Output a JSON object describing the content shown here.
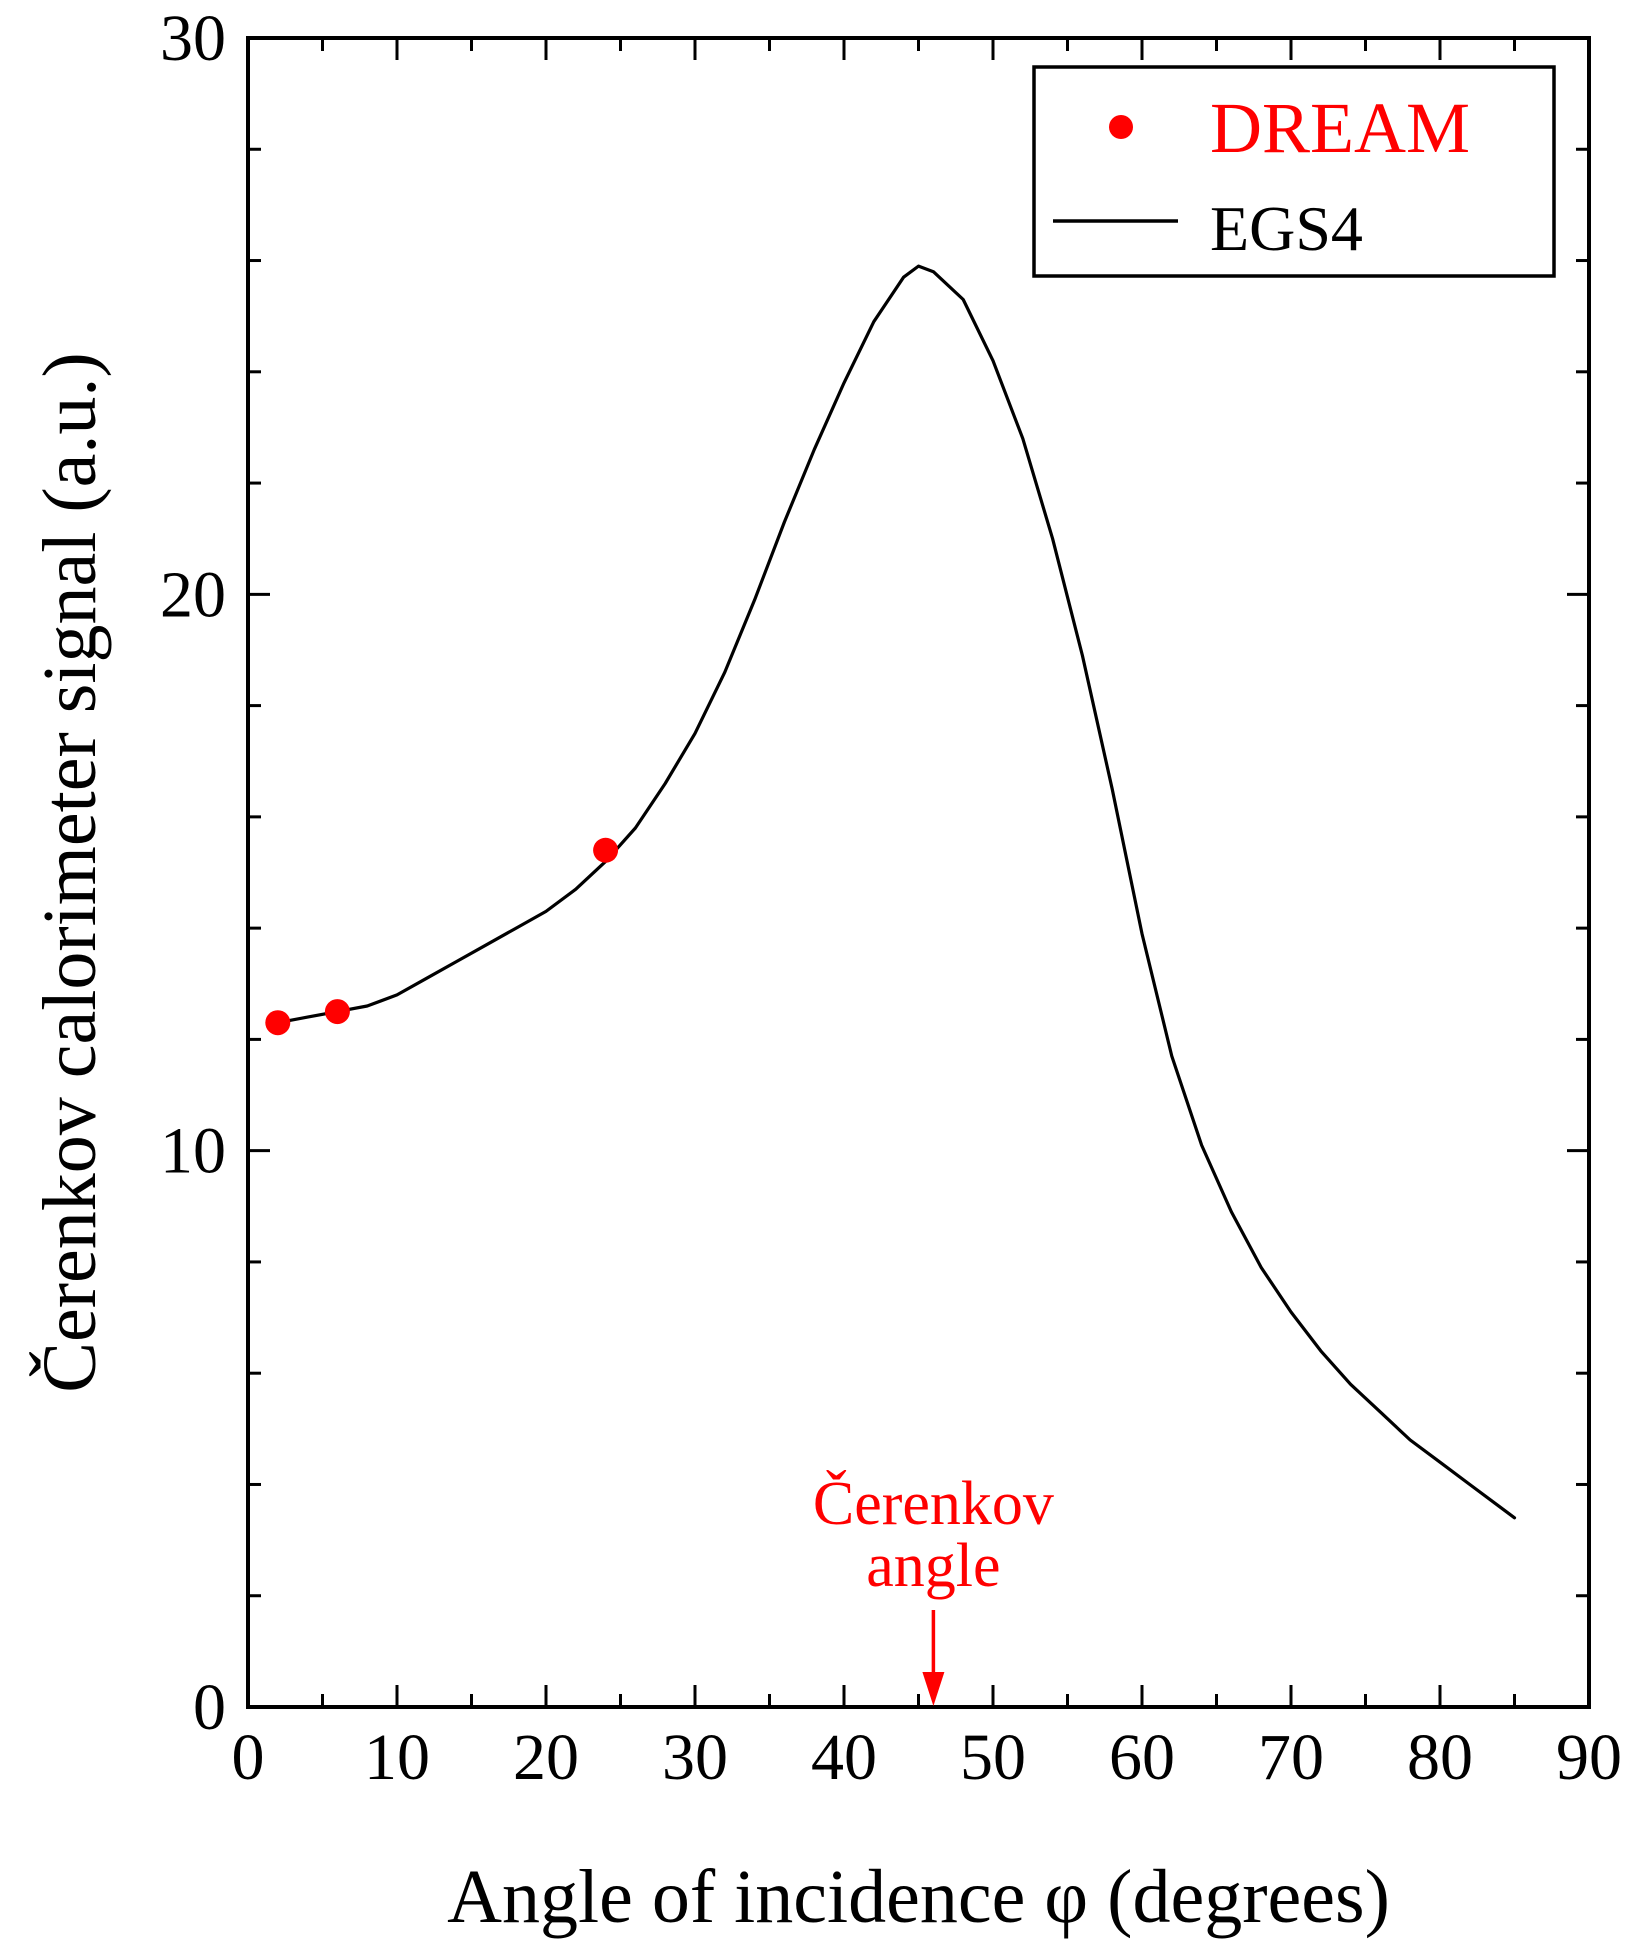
{
  "chart_data": {
    "type": "line",
    "xlabel": "Angle of incidence φ (degrees)",
    "ylabel": "Čerenkov calorimeter signal (a.u.)",
    "xlim": [
      0,
      90
    ],
    "ylim": [
      0,
      30
    ],
    "x_ticks": [
      0,
      10,
      20,
      30,
      40,
      50,
      60,
      70,
      80,
      90
    ],
    "y_ticks": [
      0,
      10,
      20,
      30
    ],
    "x_minor_step": 5,
    "y_minor_step": 2,
    "grid": false,
    "legend_position": "top-right",
    "series": [
      {
        "name": "DREAM",
        "kind": "scatter",
        "color": "#ff0000",
        "x": [
          2,
          6,
          24
        ],
        "y": [
          12.3,
          12.5,
          15.4
        ]
      },
      {
        "name": "EGS4",
        "kind": "line",
        "color": "#000000",
        "x": [
          2,
          4,
          6,
          8,
          10,
          12,
          14,
          16,
          18,
          20,
          22,
          24,
          26,
          28,
          30,
          32,
          34,
          36,
          38,
          40,
          42,
          44,
          45,
          46,
          48,
          50,
          52,
          54,
          56,
          58,
          60,
          62,
          64,
          66,
          68,
          70,
          72,
          74,
          76,
          78,
          80,
          82,
          84,
          85
        ],
        "y": [
          12.3,
          12.4,
          12.5,
          12.6,
          12.8,
          13.1,
          13.4,
          13.7,
          14.0,
          14.3,
          14.7,
          15.2,
          15.8,
          16.6,
          17.5,
          18.6,
          19.9,
          21.3,
          22.6,
          23.8,
          24.9,
          25.7,
          25.9,
          25.8,
          25.3,
          24.2,
          22.8,
          21.0,
          18.9,
          16.5,
          13.9,
          11.7,
          10.1,
          8.9,
          7.9,
          7.1,
          6.4,
          5.8,
          5.3,
          4.8,
          4.4,
          4.0,
          3.6,
          3.4
        ]
      }
    ],
    "annotation": {
      "lines": [
        "Čerenkov",
        "angle"
      ],
      "x": 46,
      "color": "#ff0000"
    }
  }
}
